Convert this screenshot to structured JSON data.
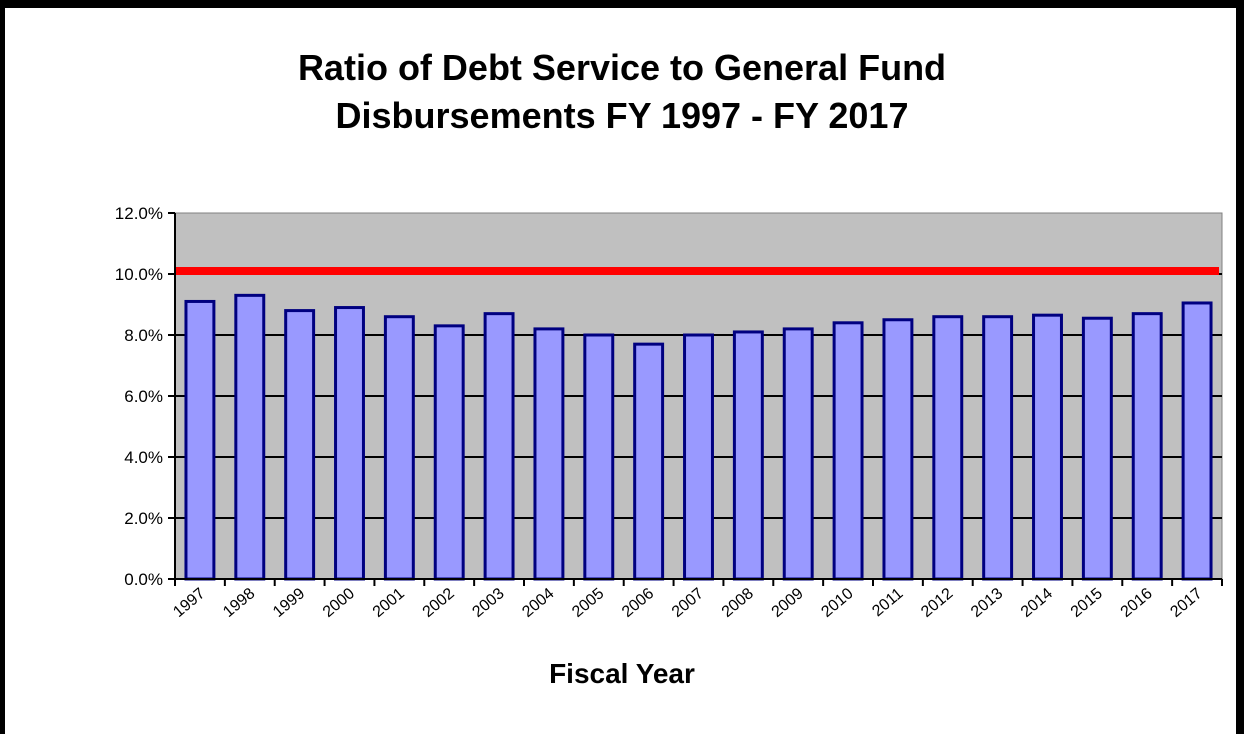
{
  "chart_data": {
    "type": "bar",
    "title_lines": [
      "Ratio of Debt Service to General Fund",
      "Disbursements FY 1997 - FY 2017"
    ],
    "xlabel": "Fiscal Year",
    "ylabel": "",
    "categories": [
      "1997",
      "1998",
      "1999",
      "2000",
      "2001",
      "2002",
      "2003",
      "2004",
      "2005",
      "2006",
      "2007",
      "2008",
      "2009",
      "2010",
      "2011",
      "2012",
      "2013",
      "2014",
      "2015",
      "2016",
      "2017"
    ],
    "values": [
      9.1,
      9.3,
      8.8,
      8.9,
      8.6,
      8.3,
      8.7,
      8.2,
      8.0,
      7.7,
      8.0,
      8.1,
      8.2,
      8.4,
      8.5,
      8.6,
      8.6,
      8.65,
      8.55,
      8.7,
      9.05
    ],
    "ylim": [
      0,
      12
    ],
    "yticks": [
      0,
      2,
      4,
      6,
      8,
      10,
      12
    ],
    "ytick_labels": [
      "0.0%",
      "2.0%",
      "4.0%",
      "6.0%",
      "8.0%",
      "10.0%",
      "12.0%"
    ],
    "reference_line": {
      "value": 10.1,
      "color": "#ff0000"
    },
    "grid": true,
    "colors": {
      "bar_fill": "#9999ff",
      "bar_stroke": "#000080",
      "plot_bg": "#c0c0c0",
      "gridline": "#000000"
    }
  }
}
